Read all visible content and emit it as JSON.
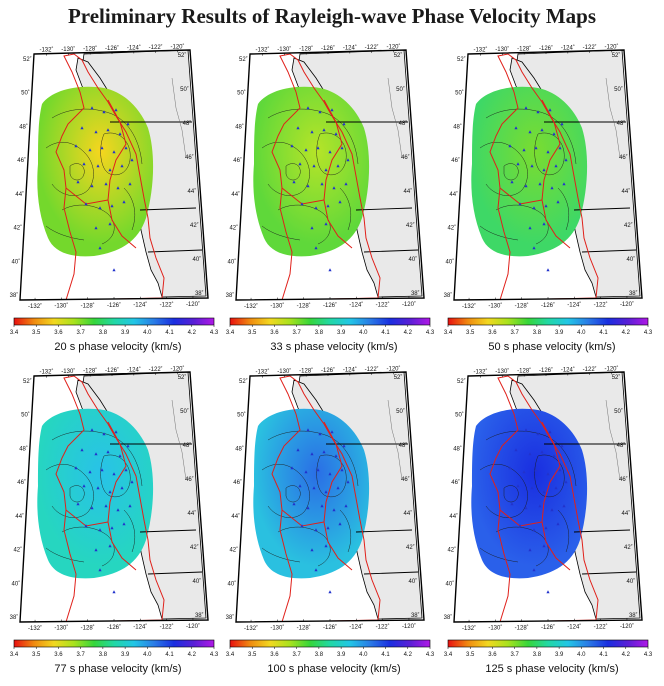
{
  "title": "Preliminary Results of Rayleigh-wave Phase Velocity Maps",
  "colors": {
    "land": "#e9e9e9",
    "ocean": "#ffffff",
    "coastline": "#000000",
    "plate_boundary": "#e0201a",
    "stations": "#2233cc",
    "colorbar_stops": [
      "#e81010",
      "#f08a10",
      "#f2d820",
      "#a8e21e",
      "#36d63a",
      "#22d8a4",
      "#22c6e6",
      "#2a7ce6",
      "#1a2ee0",
      "#5a1fd6",
      "#b018e6"
    ]
  },
  "chart_data": [
    {
      "type": "heatmap",
      "period": "20 s",
      "caption": "20 s phase velocity (km/s)",
      "map_fill": "#74d82c",
      "anomaly_fill": "#f6d61e",
      "colorbar_ticks": [
        "3.4",
        "3.5",
        "3.6",
        "3.7",
        "3.8",
        "3.9",
        "4.0",
        "4.1",
        "4.2",
        "4.3"
      ],
      "lon_labels": [
        "-132˚",
        "-130˚",
        "-128˚",
        "-126˚",
        "-124˚",
        "-122˚",
        "-120˚"
      ],
      "lat_labels_left": [
        "52˚",
        "50˚",
        "48˚",
        "46˚",
        "44˚",
        "42˚",
        "40˚",
        "38˚"
      ],
      "lat_labels_right": [
        "52˚",
        "50˚",
        "48˚",
        "46˚",
        "44˚",
        "42˚",
        "40˚",
        "38˚"
      ]
    },
    {
      "type": "heatmap",
      "period": "33 s",
      "caption": "33 s phase velocity (km/s)",
      "map_fill": "#5fd83a",
      "anomaly_fill": "#b6e428",
      "colorbar_ticks": [
        "3.4",
        "3.5",
        "3.6",
        "3.7",
        "3.8",
        "3.9",
        "4.0",
        "4.1",
        "4.2",
        "4.3"
      ],
      "lon_labels": [
        "-132˚",
        "-130˚",
        "-128˚",
        "-126˚",
        "-124˚",
        "-122˚",
        "-120˚"
      ],
      "lat_labels_left": [
        "52˚",
        "50˚",
        "48˚",
        "46˚",
        "44˚",
        "42˚",
        "40˚",
        "38˚"
      ],
      "lat_labels_right": [
        "52˚",
        "50˚",
        "48˚",
        "46˚",
        "44˚",
        "42˚",
        "40˚",
        "38˚"
      ]
    },
    {
      "type": "heatmap",
      "period": "50 s",
      "caption": "50 s phase velocity (km/s)",
      "map_fill": "#3ed866",
      "anomaly_fill": "#7adc30",
      "colorbar_ticks": [
        "3.4",
        "3.5",
        "3.6",
        "3.7",
        "3.8",
        "3.9",
        "4.0",
        "4.1",
        "4.2",
        "4.3"
      ],
      "lon_labels": [
        "-132˚",
        "-130˚",
        "-128˚",
        "-126˚",
        "-124˚",
        "-122˚",
        "-120˚"
      ],
      "lat_labels_left": [
        "52˚",
        "50˚",
        "48˚",
        "46˚",
        "44˚",
        "42˚",
        "40˚",
        "38˚"
      ],
      "lat_labels_right": [
        "52˚",
        "50˚",
        "48˚",
        "46˚",
        "44˚",
        "42˚",
        "40˚",
        "38˚"
      ]
    },
    {
      "type": "heatmap",
      "period": "77 s",
      "caption": "77 s phase velocity (km/s)",
      "map_fill": "#26d6c0",
      "anomaly_fill": "#28c2e8",
      "colorbar_ticks": [
        "3.4",
        "3.5",
        "3.6",
        "3.7",
        "3.8",
        "3.9",
        "4.0",
        "4.1",
        "4.2",
        "4.3"
      ],
      "lon_labels": [
        "-132˚",
        "-130˚",
        "-128˚",
        "-126˚",
        "-124˚",
        "-122˚",
        "-120˚"
      ],
      "lat_labels_left": [
        "52˚",
        "50˚",
        "48˚",
        "46˚",
        "44˚",
        "42˚",
        "40˚",
        "38˚"
      ],
      "lat_labels_right": [
        "52˚",
        "50˚",
        "48˚",
        "46˚",
        "44˚",
        "42˚",
        "40˚",
        "38˚"
      ]
    },
    {
      "type": "heatmap",
      "period": "100 s",
      "caption": "100 s phase velocity (km/s)",
      "map_fill": "#2ac0e0",
      "anomaly_fill": "#2a6ee6",
      "colorbar_ticks": [
        "3.4",
        "3.5",
        "3.6",
        "3.7",
        "3.8",
        "3.9",
        "4.0",
        "4.1",
        "4.2",
        "4.3"
      ],
      "lon_labels": [
        "-132˚",
        "-130˚",
        "-128˚",
        "-126˚",
        "-124˚",
        "-122˚",
        "-120˚"
      ],
      "lat_labels_left": [
        "52˚",
        "50˚",
        "48˚",
        "46˚",
        "44˚",
        "42˚",
        "40˚",
        "38˚"
      ],
      "lat_labels_right": [
        "52˚",
        "50˚",
        "48˚",
        "46˚",
        "44˚",
        "42˚",
        "40˚",
        "38˚"
      ]
    },
    {
      "type": "heatmap",
      "period": "125 s",
      "caption": "125 s phase velocity (km/s)",
      "map_fill": "#2a60ea",
      "anomaly_fill": "#1a2ee0",
      "colorbar_ticks": [
        "3.4",
        "3.5",
        "3.6",
        "3.7",
        "3.8",
        "3.9",
        "4.0",
        "4.1",
        "4.2",
        "4.3"
      ],
      "lon_labels": [
        "-132˚",
        "-130˚",
        "-128˚",
        "-126˚",
        "-124˚",
        "-122˚",
        "-120˚"
      ],
      "lat_labels_left": [
        "52˚",
        "50˚",
        "48˚",
        "46˚",
        "44˚",
        "42˚",
        "40˚",
        "38˚"
      ],
      "lat_labels_right": [
        "52˚",
        "50˚",
        "48˚",
        "46˚",
        "44˚",
        "42˚",
        "40˚",
        "38˚"
      ]
    }
  ]
}
